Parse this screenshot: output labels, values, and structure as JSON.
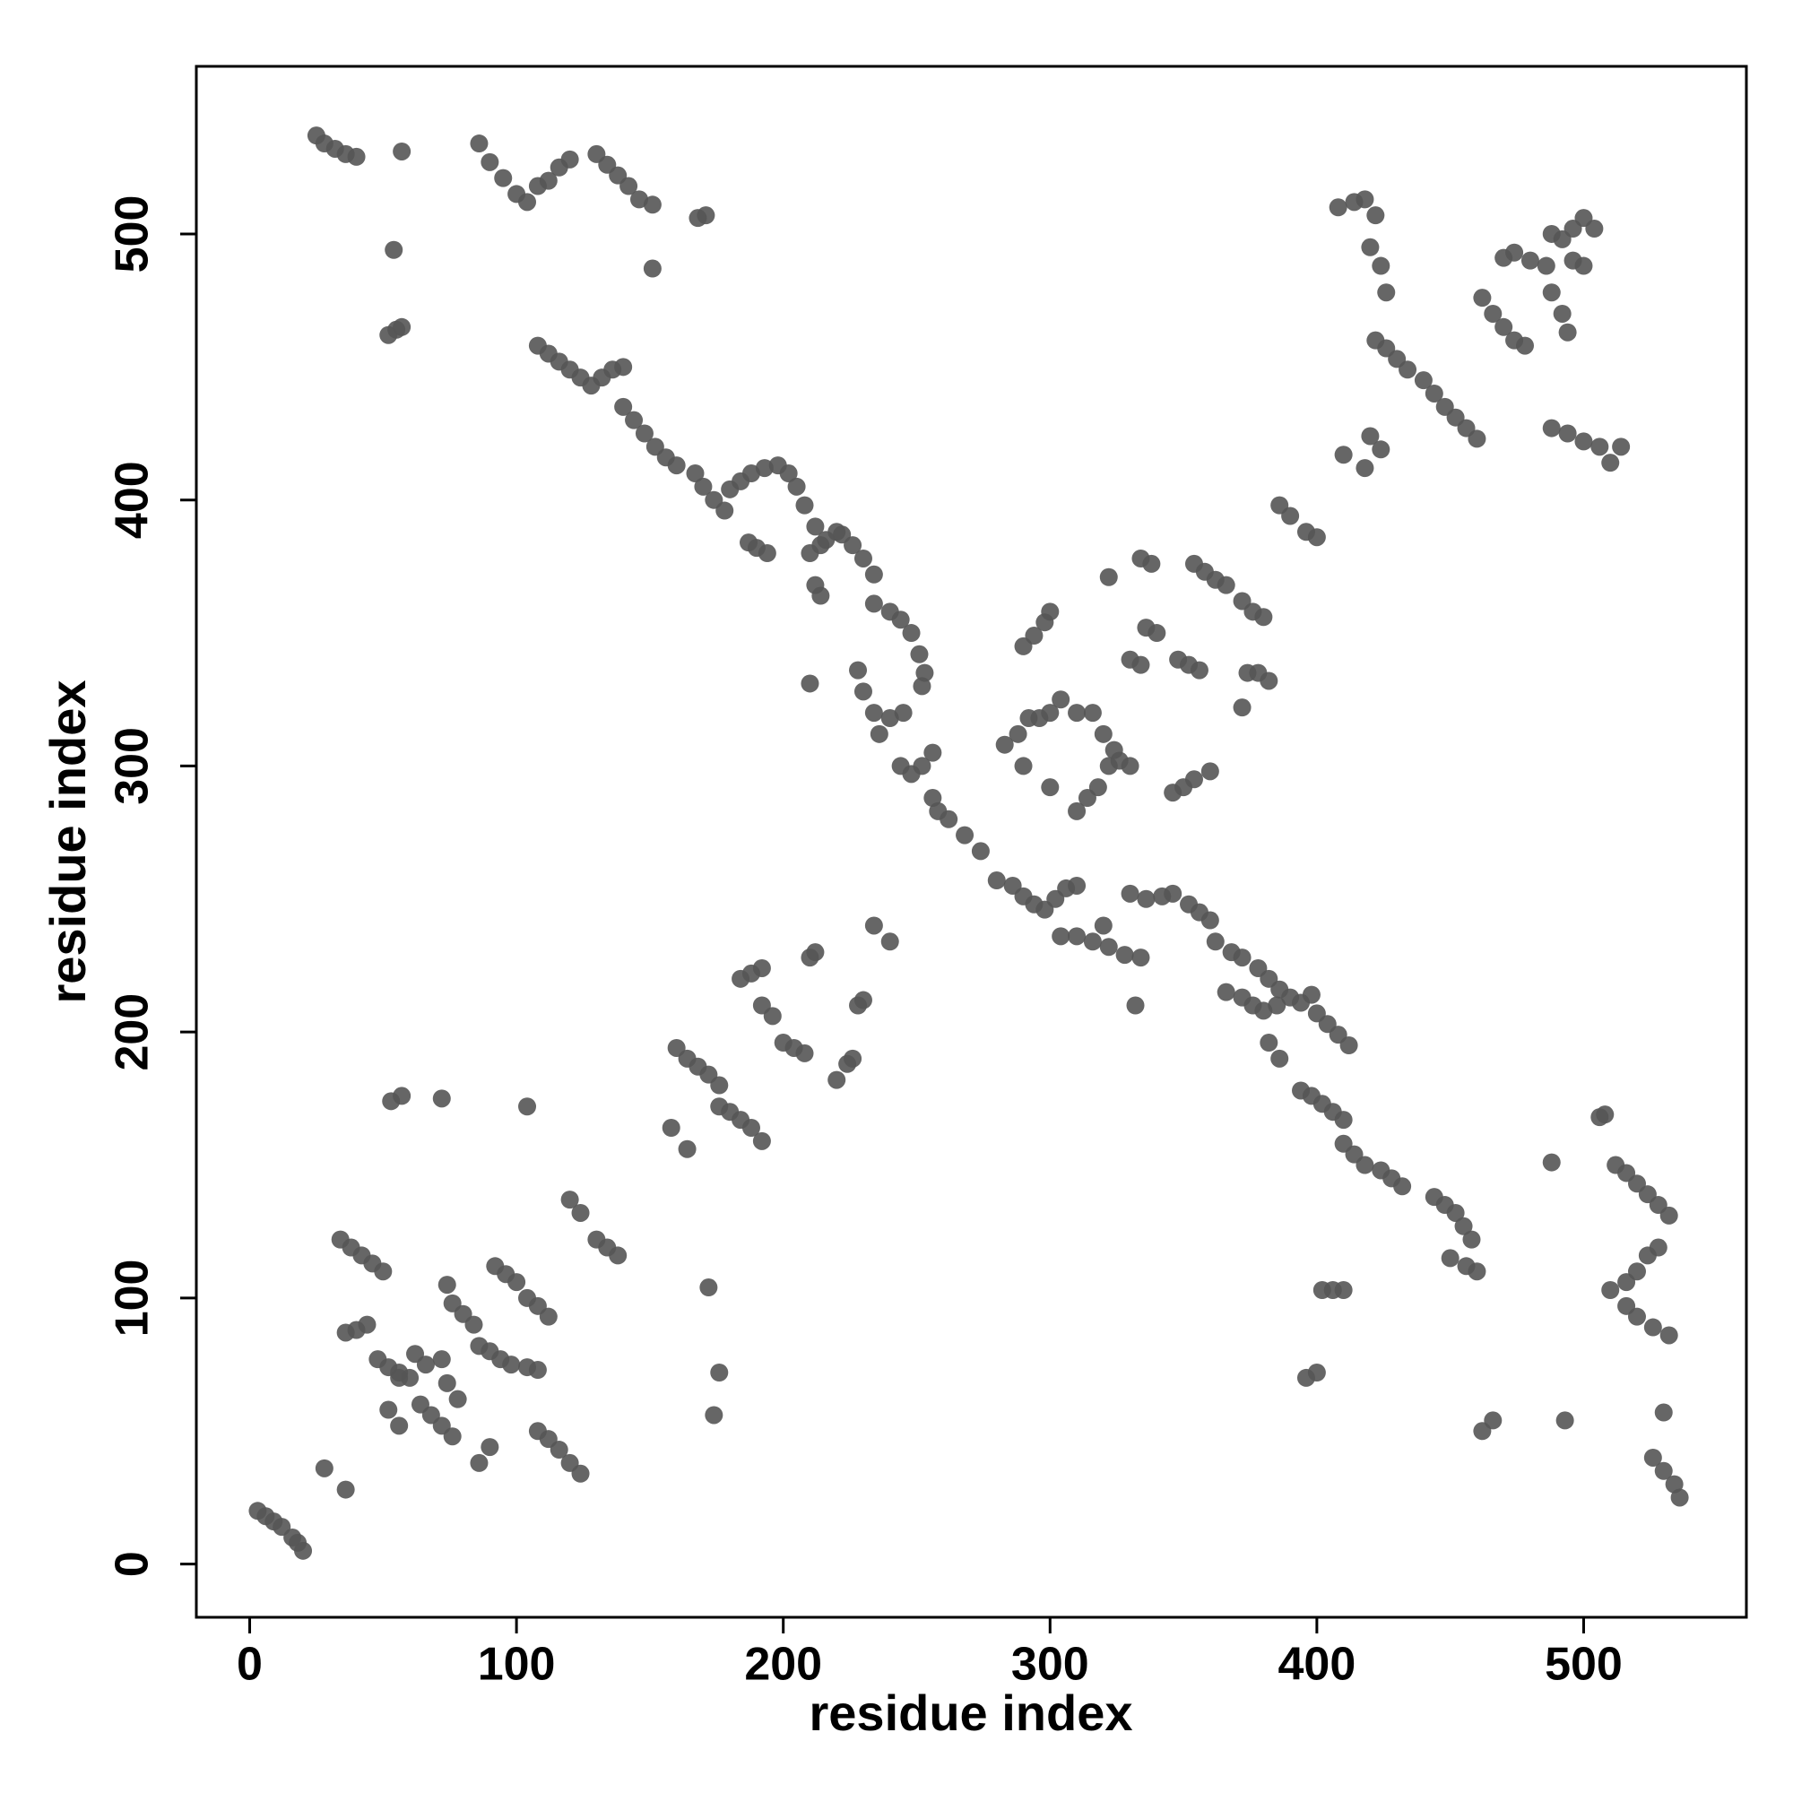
{
  "chart_data": {
    "type": "scatter",
    "x_label": "residue index",
    "y_label": "residue index",
    "xlim": [
      -20,
      561
    ],
    "ylim": [
      -20,
      563
    ],
    "xticks": [
      0,
      100,
      200,
      300,
      400,
      500
    ],
    "yticks": [
      0,
      100,
      200,
      300,
      400,
      500
    ],
    "color": "#555555",
    "x": [
      25,
      28,
      32,
      36,
      40,
      57,
      54,
      52,
      55,
      57,
      86,
      90,
      95,
      100,
      104,
      108,
      112,
      116,
      120,
      130,
      134,
      138,
      142,
      146,
      151,
      151,
      168,
      171,
      108,
      112,
      116,
      120,
      124,
      128,
      132,
      136,
      140,
      140,
      144,
      148,
      152,
      156,
      160,
      167,
      170,
      174,
      178,
      180,
      184,
      188,
      193,
      198,
      202,
      187,
      190,
      194,
      205,
      208,
      212,
      216,
      220,
      210,
      214,
      212,
      214,
      222,
      226,
      230,
      234,
      234,
      240,
      244,
      248,
      251,
      253,
      252,
      210,
      228,
      230,
      234,
      236,
      240,
      245,
      244,
      248,
      252,
      256,
      256,
      258,
      262,
      268,
      274,
      280,
      286,
      290,
      294,
      298,
      302,
      306,
      310,
      304,
      310,
      316,
      322,
      328,
      334,
      332,
      320,
      330,
      336,
      342,
      346,
      352,
      356,
      360,
      362,
      368,
      372,
      378,
      382,
      386,
      390,
      394,
      398,
      366,
      372,
      376,
      380,
      385,
      382,
      386,
      400,
      404,
      408,
      412,
      394,
      398,
      402,
      406,
      410,
      410,
      414,
      418,
      424,
      428,
      432,
      444,
      448,
      452,
      455,
      458,
      450,
      456,
      460,
      402,
      406,
      410,
      396,
      400,
      462,
      466,
      493,
      488,
      506,
      508,
      512,
      516,
      520,
      524,
      528,
      532,
      510,
      516,
      520,
      524,
      528,
      516,
      520,
      526,
      532,
      530,
      526,
      530,
      534,
      536,
      408,
      414,
      418,
      422,
      420,
      424,
      426,
      422,
      426,
      430,
      434,
      440,
      444,
      448,
      452,
      456,
      460,
      470,
      474,
      480,
      486,
      462,
      466,
      470,
      474,
      478,
      488,
      492,
      496,
      500,
      504,
      488,
      492,
      494,
      496,
      500,
      488,
      494,
      500,
      506,
      510,
      514,
      410,
      418,
      420,
      424,
      386,
      390,
      396,
      400,
      372,
      376,
      380,
      354,
      358,
      362,
      366,
      334,
      338,
      336,
      340,
      330,
      334,
      348,
      352,
      356,
      374,
      378,
      382,
      372,
      346,
      350,
      354,
      360,
      290,
      294,
      298,
      300,
      283,
      288,
      292,
      296,
      300,
      304,
      310,
      316,
      310,
      314,
      318,
      322,
      326,
      330,
      320,
      324,
      290,
      300,
      322,
      3,
      6,
      9,
      12,
      16,
      18,
      20,
      28,
      36,
      34,
      38,
      42,
      46,
      50,
      36,
      40,
      44,
      48,
      52,
      56,
      60,
      52,
      56,
      56,
      62,
      66,
      64,
      68,
      72,
      76,
      72,
      74,
      76,
      80,
      84,
      74,
      78,
      86,
      90,
      94,
      98,
      86,
      90,
      92,
      96,
      100,
      104,
      108,
      112,
      104,
      108,
      108,
      112,
      116,
      120,
      124,
      120,
      124,
      130,
      134,
      138,
      53,
      57,
      72,
      104,
      158,
      164,
      160,
      164,
      168,
      172,
      176,
      176,
      180,
      184,
      188,
      192,
      172,
      174,
      176,
      184,
      188,
      192,
      192,
      196,
      200,
      204,
      208,
      210,
      212,
      220,
      224,
      226,
      228,
      230,
      234,
      240
    ],
    "values": [
      537,
      534,
      532,
      530,
      529,
      531,
      494,
      462,
      464,
      465,
      534,
      527,
      521,
      515,
      512,
      518,
      520,
      525,
      528,
      530,
      526,
      522,
      518,
      513,
      511,
      487,
      506,
      507,
      458,
      455,
      452,
      449,
      446,
      443,
      446,
      449,
      450,
      435,
      430,
      425,
      420,
      416,
      413,
      410,
      405,
      400,
      396,
      404,
      407,
      410,
      412,
      413,
      410,
      384,
      382,
      380,
      405,
      398,
      390,
      385,
      388,
      380,
      383,
      368,
      364,
      387,
      383,
      378,
      372,
      361,
      358,
      355,
      350,
      342,
      335,
      330,
      331,
      336,
      328,
      320,
      312,
      318,
      320,
      300,
      297,
      300,
      305,
      288,
      283,
      280,
      274,
      268,
      257,
      255,
      251,
      248,
      246,
      250,
      254,
      255,
      236,
      236,
      234,
      232,
      229,
      228,
      210,
      240,
      252,
      250,
      251,
      252,
      248,
      245,
      242,
      234,
      230,
      228,
      224,
      220,
      216,
      213,
      211,
      214,
      215,
      213,
      210,
      208,
      210,
      196,
      190,
      207,
      203,
      199,
      195,
      178,
      176,
      173,
      170,
      167,
      158,
      154,
      150,
      148,
      145,
      142,
      138,
      135,
      132,
      127,
      122,
      115,
      112,
      110,
      103,
      103,
      103,
      70,
      72,
      50,
      54,
      54,
      151,
      168,
      169,
      150,
      147,
      143,
      139,
      135,
      131,
      103,
      106,
      110,
      116,
      119,
      97,
      93,
      89,
      86,
      57,
      40,
      35,
      30,
      25,
      510,
      512,
      513,
      507,
      495,
      488,
      478,
      460,
      457,
      453,
      449,
      445,
      440,
      435,
      431,
      427,
      423,
      491,
      493,
      490,
      488,
      476,
      470,
      465,
      460,
      458,
      500,
      498,
      502,
      506,
      502,
      478,
      470,
      463,
      490,
      488,
      427,
      425,
      422,
      420,
      414,
      420,
      417,
      412,
      424,
      419,
      398,
      394,
      388,
      386,
      362,
      358,
      356,
      376,
      373,
      370,
      368,
      378,
      376,
      352,
      350,
      340,
      338,
      340,
      338,
      336,
      335,
      335,
      332,
      322,
      290,
      292,
      295,
      298,
      345,
      349,
      354,
      358,
      308,
      312,
      318,
      318,
      320,
      325,
      320,
      320,
      283,
      288,
      292,
      300,
      302,
      300,
      312,
      306,
      300,
      292,
      371,
      20,
      18,
      16,
      14,
      10,
      8,
      5,
      36,
      28,
      122,
      119,
      116,
      113,
      110,
      87,
      88,
      90,
      77,
      74,
      72,
      70,
      58,
      52,
      70,
      79,
      75,
      60,
      56,
      52,
      48,
      77,
      105,
      98,
      94,
      90,
      68,
      62,
      82,
      80,
      77,
      75,
      38,
      44,
      112,
      109,
      106,
      100,
      97,
      93,
      74,
      73,
      50,
      47,
      43,
      38,
      34,
      137,
      132,
      122,
      119,
      116,
      174,
      176,
      175,
      172,
      164,
      156,
      194,
      190,
      187,
      184,
      180,
      172,
      170,
      167,
      164,
      159,
      104,
      56,
      72,
      220,
      222,
      224,
      210,
      206,
      196,
      194,
      192,
      228,
      230,
      182,
      188,
      190,
      210,
      212,
      240,
      234
    ]
  }
}
